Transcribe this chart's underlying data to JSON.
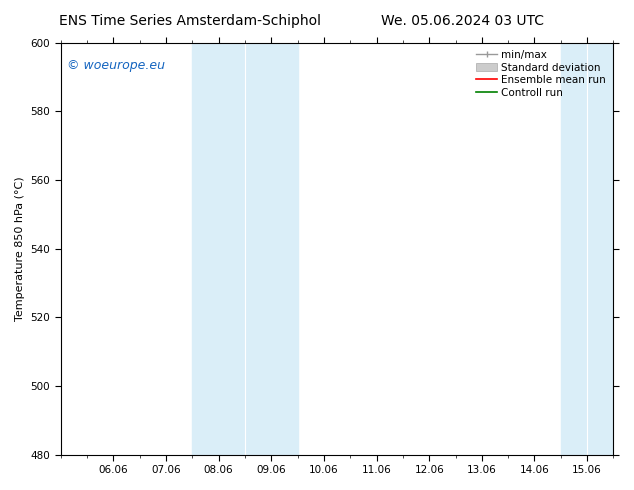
{
  "title_left": "ENS Time Series Amsterdam-Schiphol",
  "title_right": "We. 05.06.2024 03 UTC",
  "ylabel": "Temperature 850 hPa (°C)",
  "ylim": [
    480,
    600
  ],
  "yticks": [
    480,
    500,
    520,
    540,
    560,
    580,
    600
  ],
  "xtick_labels": [
    "06.06",
    "07.06",
    "08.06",
    "09.06",
    "10.06",
    "11.06",
    "12.06",
    "13.06",
    "14.06",
    "15.06"
  ],
  "xtick_positions": [
    1,
    2,
    3,
    4,
    5,
    6,
    7,
    8,
    9,
    10
  ],
  "xlim": [
    0,
    10.5
  ],
  "shaded_regions": [
    {
      "xstart": 2.5,
      "xend": 3.5,
      "color": "#dceef8"
    },
    {
      "xstart": 3.5,
      "xend": 4.5,
      "color": "#d0e8f4"
    },
    {
      "xstart": 9.5,
      "xend": 10.0,
      "color": "#dceef8"
    },
    {
      "xstart": 10.0,
      "xend": 10.5,
      "color": "#d0e8f4"
    }
  ],
  "watermark_text": "© woeurope.eu",
  "watermark_color": "#1565c0",
  "background_color": "#ffffff",
  "plot_bg_color": "#ffffff",
  "title_fontsize": 10,
  "axis_label_fontsize": 8,
  "tick_fontsize": 7.5,
  "watermark_fontsize": 9,
  "legend_fontsize": 7.5,
  "shade_color": "#daeef8"
}
